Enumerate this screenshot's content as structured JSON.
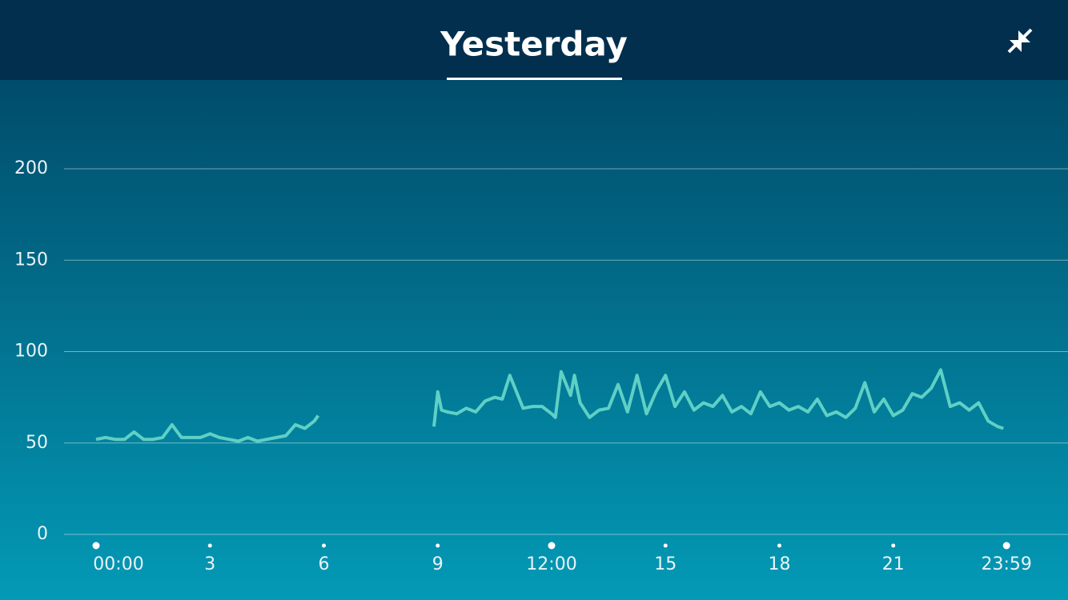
{
  "header": {
    "title": "Yesterday"
  },
  "chart_data": {
    "type": "line",
    "x": [
      0,
      0.25,
      0.5,
      0.75,
      1.0,
      1.25,
      1.5,
      1.75,
      2.0,
      2.25,
      2.5,
      2.75,
      3.0,
      3.25,
      3.5,
      3.75,
      4.0,
      4.25,
      4.5,
      4.75,
      5.0,
      5.25,
      5.5,
      5.75,
      5.85,
      7.5,
      8.9,
      9.0,
      9.1,
      9.25,
      9.5,
      9.75,
      10.0,
      10.25,
      10.5,
      10.7,
      10.9,
      11.25,
      11.5,
      11.75,
      12.0,
      12.1,
      12.25,
      12.5,
      12.6,
      12.75,
      13.0,
      13.25,
      13.5,
      13.75,
      14.0,
      14.25,
      14.5,
      14.75,
      15.0,
      15.25,
      15.5,
      15.75,
      16.0,
      16.25,
      16.5,
      16.75,
      17.0,
      17.25,
      17.5,
      17.75,
      18.0,
      18.25,
      18.5,
      18.75,
      19.0,
      19.25,
      19.5,
      19.75,
      20.0,
      20.25,
      20.5,
      20.75,
      21.0,
      21.25,
      21.5,
      21.75,
      22.0,
      22.25,
      22.5,
      22.75,
      23.0,
      23.25,
      23.5,
      23.75,
      23.9
    ],
    "series": [
      {
        "color": "#5fd0c5",
        "values": [
          52,
          53,
          52,
          52,
          56,
          52,
          52,
          53,
          60,
          53,
          53,
          53,
          55,
          53,
          52,
          51,
          53,
          51,
          52,
          53,
          54,
          60,
          58,
          62,
          65,
          null,
          59,
          78,
          68,
          67,
          66,
          69,
          67,
          73,
          75,
          74,
          87,
          69,
          70,
          70,
          66,
          64,
          89,
          76,
          87,
          72,
          64,
          68,
          69,
          82,
          67,
          87,
          66,
          78,
          87,
          70,
          78,
          68,
          72,
          70,
          76,
          67,
          70,
          66,
          78,
          70,
          72,
          68,
          70,
          67,
          74,
          65,
          67,
          64,
          69,
          83,
          67,
          74,
          65,
          68,
          77,
          75,
          80,
          90,
          70,
          72,
          68,
          72,
          62,
          59,
          58
        ]
      }
    ],
    "xlim": [
      0,
      24
    ],
    "ylim": [
      0,
      200
    ],
    "xticks": [
      {
        "value": 0,
        "label": "00:00"
      },
      3,
      6,
      9,
      {
        "value": 12,
        "label": "12:00"
      },
      15,
      18,
      21,
      {
        "value": 23.983,
        "label": "23:59"
      }
    ],
    "yticks": [
      0,
      50,
      100,
      150,
      200
    ],
    "grid": true
  }
}
